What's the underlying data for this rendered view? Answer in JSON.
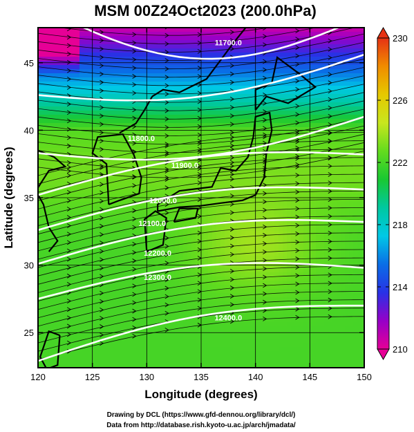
{
  "chart_data": {
    "type": "heatmap",
    "title": "MSM 00Z24Oct2023 (200.0hPa)",
    "xlabel": "Longitude (degrees)",
    "ylabel": "Latitude  (degrees)",
    "xlim": [
      120,
      150
    ],
    "ylim": [
      22.4,
      47.6
    ],
    "xticks": [
      120,
      125,
      130,
      135,
      140,
      145,
      150
    ],
    "xtick_labels": [
      "120",
      "125",
      "130",
      "135",
      "140",
      "145",
      "150"
    ],
    "yticks": [
      25,
      30,
      35,
      40,
      45
    ],
    "ytick_labels": [
      "25",
      "30",
      "35",
      "40",
      "45"
    ],
    "grid": true,
    "colorbar": {
      "range": [
        210,
        230
      ],
      "ticks": [
        210,
        214,
        218,
        222,
        226,
        230
      ],
      "tick_labels": [
        "210",
        "214",
        "218",
        "222",
        "226",
        "230"
      ]
    },
    "contours": [
      {
        "label": "11700.0",
        "lon": 137.5,
        "lat": 46.3
      },
      {
        "label": "11800.0",
        "lon": 129.5,
        "lat": 39.2
      },
      {
        "label": "11900.0",
        "lon": 133.5,
        "lat": 37.2
      },
      {
        "label": "12000.0",
        "lon": 131.5,
        "lat": 34.6
      },
      {
        "label": "12100.0",
        "lon": 130.5,
        "lat": 32.9
      },
      {
        "label": "12200.0",
        "lon": 131.0,
        "lat": 30.7
      },
      {
        "label": "12300.0",
        "lon": 131.0,
        "lat": 28.9
      },
      {
        "label": "12400.0",
        "lon": 137.5,
        "lat": 25.9
      }
    ],
    "contour_lats_at_120": [
      49.2,
      42.6,
      38.3,
      35.2,
      32.6,
      30.1,
      27.5,
      22.9
    ],
    "contour_lats_at_150": [
      48.4,
      45.6,
      41.0,
      38.2,
      35.6,
      33.2,
      29.8,
      27.0
    ]
  },
  "credits": {
    "line1": "Drawing by DCL (https://www.gfd-dennou.org/library/dcl/)",
    "line2": "Data from http://database.rish.kyoto-u.ac.jp/arch/jmadata/"
  },
  "colors": {
    "cb_stops": [
      "#e60096",
      "#9600c8",
      "#2832e6",
      "#0a6ee6",
      "#00c8e6",
      "#00c8a0",
      "#19c832",
      "#64dc1e",
      "#c8e61e",
      "#e6c800",
      "#f08c00",
      "#e63214"
    ]
  }
}
